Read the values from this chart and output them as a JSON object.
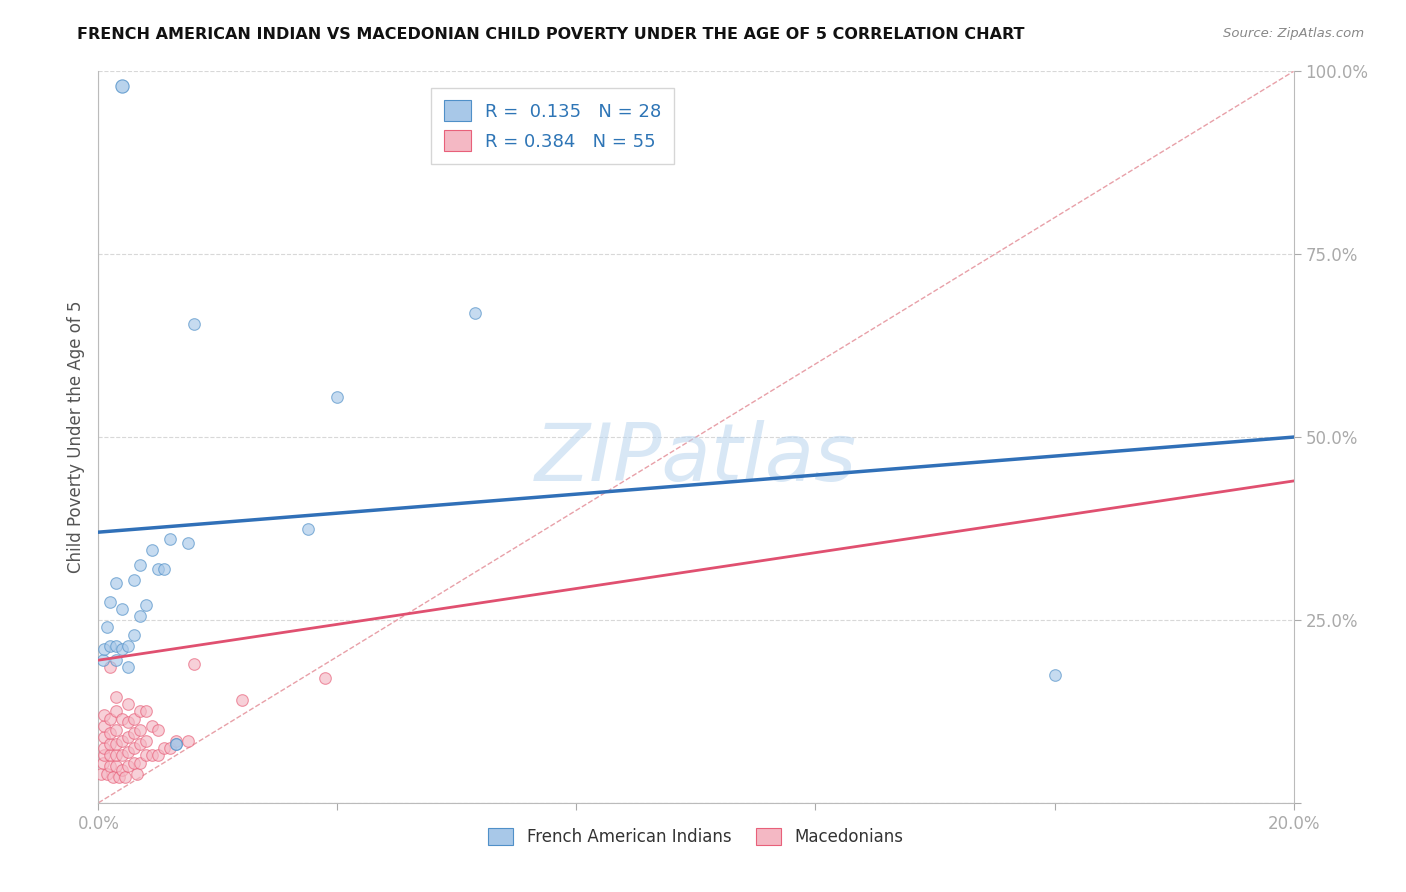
{
  "title": "FRENCH AMERICAN INDIAN VS MACEDONIAN CHILD POVERTY UNDER THE AGE OF 5 CORRELATION CHART",
  "source": "Source: ZipAtlas.com",
  "ylabel": "Child Poverty Under the Age of 5",
  "xlim": [
    0,
    0.2
  ],
  "ylim": [
    0,
    1.0
  ],
  "xticks": [
    0.0,
    0.04,
    0.08,
    0.12,
    0.16,
    0.2
  ],
  "yticks": [
    0.0,
    0.25,
    0.5,
    0.75,
    1.0
  ],
  "legend_label1": "French American Indians",
  "legend_label2": "Macedonians",
  "blue_fill": "#a8c8e8",
  "pink_fill": "#f4b8c4",
  "blue_edge": "#5090c8",
  "pink_edge": "#e8607a",
  "blue_line_color": "#3070b8",
  "pink_line_color": "#e05070",
  "diag_line_color": "#e8a0a8",
  "scatter_alpha": 0.65,
  "scatter_size": 70,
  "french_x": [
    0.0008,
    0.001,
    0.0015,
    0.002,
    0.002,
    0.003,
    0.003,
    0.003,
    0.004,
    0.004,
    0.005,
    0.005,
    0.006,
    0.006,
    0.007,
    0.007,
    0.008,
    0.009,
    0.01,
    0.011,
    0.012,
    0.013,
    0.013,
    0.015,
    0.016,
    0.035,
    0.04,
    0.16
  ],
  "french_y": [
    0.195,
    0.21,
    0.24,
    0.215,
    0.275,
    0.195,
    0.215,
    0.3,
    0.21,
    0.265,
    0.185,
    0.215,
    0.23,
    0.305,
    0.255,
    0.325,
    0.27,
    0.345,
    0.32,
    0.32,
    0.36,
    0.08,
    0.08,
    0.355,
    0.655,
    0.375,
    0.555,
    0.175
  ],
  "maced_x": [
    0.0005,
    0.0007,
    0.0009,
    0.001,
    0.001,
    0.001,
    0.001,
    0.0015,
    0.002,
    0.002,
    0.002,
    0.002,
    0.002,
    0.002,
    0.0025,
    0.003,
    0.003,
    0.003,
    0.003,
    0.003,
    0.003,
    0.0035,
    0.004,
    0.004,
    0.004,
    0.004,
    0.0045,
    0.005,
    0.005,
    0.005,
    0.005,
    0.005,
    0.006,
    0.006,
    0.006,
    0.006,
    0.0065,
    0.007,
    0.007,
    0.007,
    0.007,
    0.008,
    0.008,
    0.008,
    0.009,
    0.009,
    0.01,
    0.01,
    0.011,
    0.012,
    0.013,
    0.015,
    0.016,
    0.024,
    0.038
  ],
  "maced_y": [
    0.04,
    0.055,
    0.065,
    0.075,
    0.09,
    0.105,
    0.12,
    0.04,
    0.05,
    0.065,
    0.08,
    0.095,
    0.115,
    0.185,
    0.035,
    0.05,
    0.065,
    0.08,
    0.1,
    0.125,
    0.145,
    0.035,
    0.045,
    0.065,
    0.085,
    0.115,
    0.035,
    0.05,
    0.07,
    0.09,
    0.11,
    0.135,
    0.055,
    0.075,
    0.095,
    0.115,
    0.04,
    0.055,
    0.08,
    0.1,
    0.125,
    0.065,
    0.085,
    0.125,
    0.065,
    0.105,
    0.065,
    0.1,
    0.075,
    0.075,
    0.085,
    0.085,
    0.19,
    0.14,
    0.17
  ],
  "blue_line_x0": 0.0,
  "blue_line_y0": 0.37,
  "blue_line_x1": 0.2,
  "blue_line_y1": 0.5,
  "pink_line_x0": 0.0,
  "pink_line_y0": 0.195,
  "pink_line_x1": 0.2,
  "pink_line_y1": 0.44,
  "watermark": "ZIPatlas",
  "background_color": "#ffffff",
  "grid_color": "#d8d8d8"
}
